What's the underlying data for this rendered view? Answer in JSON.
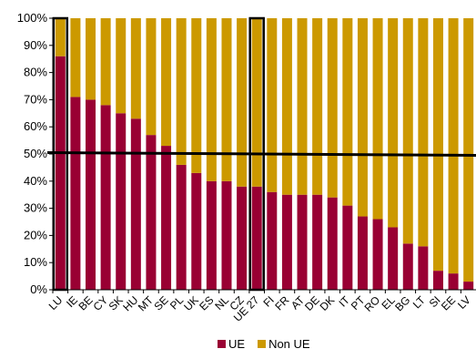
{
  "chart_data": {
    "type": "bar",
    "stacked": true,
    "orientation": "vertical",
    "categories": [
      "LU",
      "IE",
      "BE",
      "CY",
      "SK",
      "HU",
      "MT",
      "SE",
      "PL",
      "UK",
      "ES",
      "NL",
      "CZ",
      "UE 27",
      "FI",
      "FR",
      "AT",
      "DE",
      "DK",
      "IT",
      "PT",
      "RO",
      "EL",
      "BG",
      "LT",
      "SI",
      "EE",
      "LV"
    ],
    "series": [
      {
        "name": "UE",
        "color": "#990033",
        "values": [
          86,
          71,
          70,
          68,
          65,
          63,
          57,
          53,
          46,
          43,
          40,
          40,
          38,
          38,
          36,
          35,
          35,
          35,
          34,
          31,
          27,
          26,
          23,
          17,
          16,
          7,
          6,
          3
        ]
      },
      {
        "name": "Non UE",
        "color": "#CC9900",
        "values": [
          14,
          29,
          30,
          32,
          35,
          37,
          43,
          47,
          54,
          57,
          60,
          60,
          62,
          62,
          64,
          65,
          65,
          65,
          66,
          69,
          73,
          74,
          77,
          83,
          84,
          93,
          94,
          97
        ]
      }
    ],
    "highlighted_categories": [
      "LU",
      "UE 27"
    ],
    "reference_line": 50,
    "yticks": [
      "0%",
      "10%",
      "20%",
      "30%",
      "40%",
      "50%",
      "60%",
      "70%",
      "80%",
      "90%",
      "100%"
    ],
    "ylim": [
      0,
      100
    ],
    "grid": false,
    "legend_position": "bottom"
  }
}
